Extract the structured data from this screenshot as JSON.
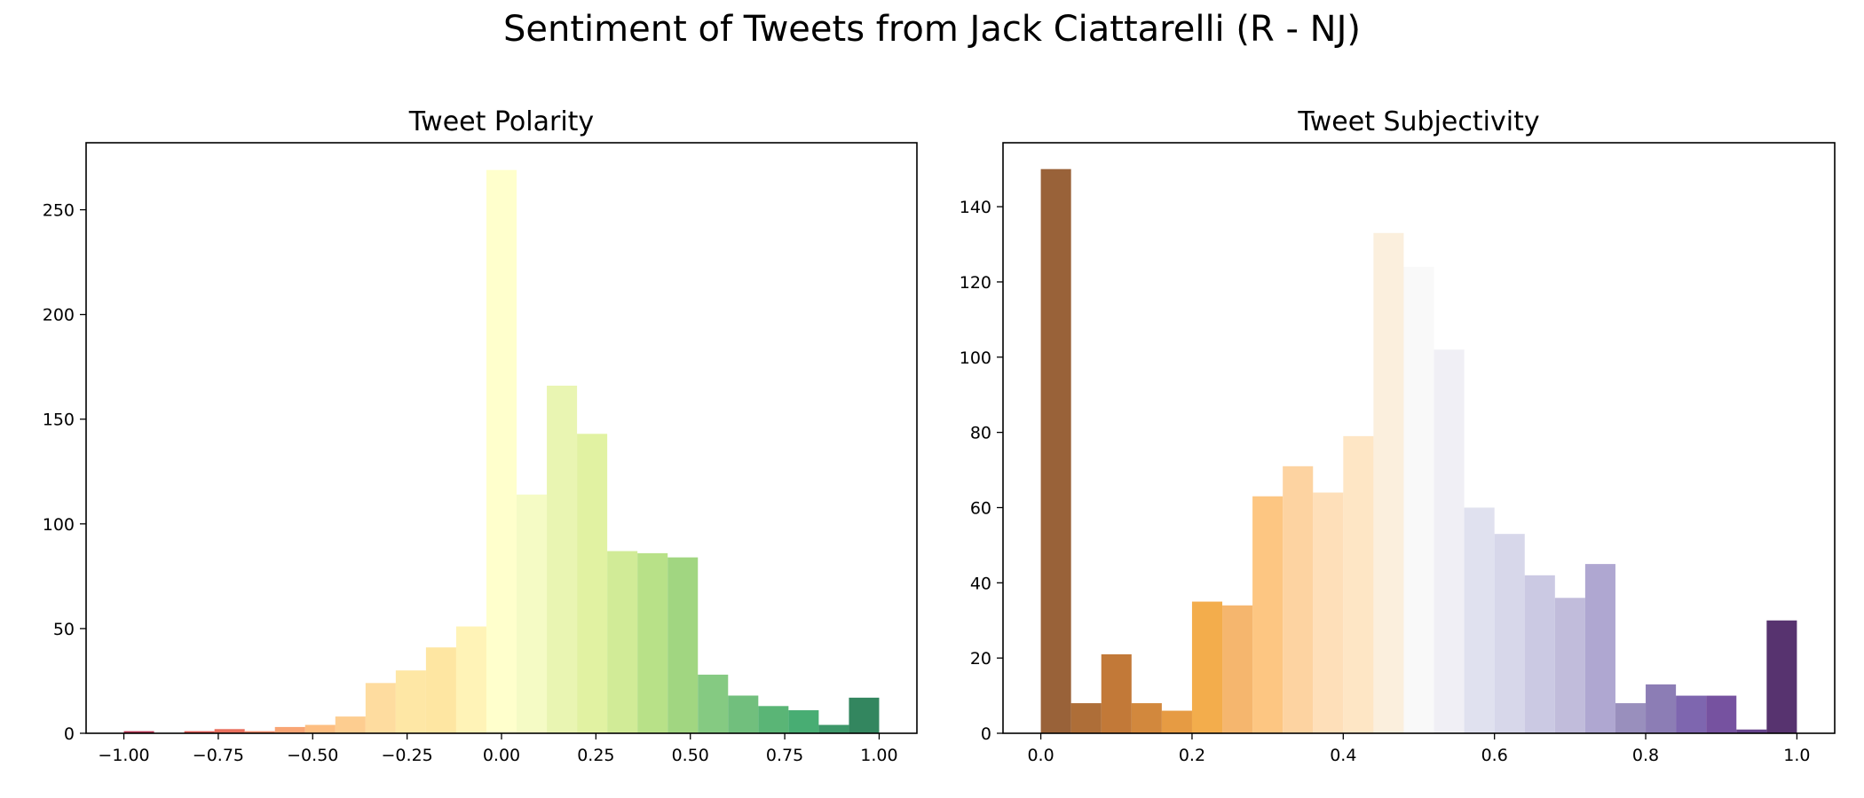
{
  "suptitle": "Sentiment of Tweets from Jack Ciattarelli (R - NJ)",
  "chart_data": [
    {
      "type": "bar",
      "title": "Tweet Polarity",
      "xlabel": "",
      "ylabel": "",
      "xlim": [
        -1.1,
        1.1
      ],
      "ylim": [
        0,
        282
      ],
      "xticks": [
        -1.0,
        -0.75,
        -0.5,
        -0.25,
        0.0,
        0.25,
        0.5,
        0.75,
        1.0
      ],
      "xtick_labels": [
        "−1.00",
        "−0.75",
        "−0.50",
        "−0.25",
        "0.00",
        "0.25",
        "0.50",
        "0.75",
        "1.00"
      ],
      "yticks": [
        0,
        50,
        100,
        150,
        200,
        250
      ],
      "ytick_labels": [
        "0",
        "50",
        "100",
        "150",
        "200",
        "250"
      ],
      "bin_edges": [
        -1.0,
        -0.92,
        -0.84,
        -0.76,
        -0.68,
        -0.6,
        -0.52,
        -0.44,
        -0.36,
        -0.28,
        -0.2,
        -0.12,
        -0.04,
        0.04,
        0.12,
        0.2,
        0.28,
        0.36,
        0.44,
        0.52,
        0.6,
        0.68,
        0.76,
        0.84,
        0.92,
        1.0
      ],
      "values": [
        1,
        0,
        1,
        2,
        1,
        3,
        4,
        8,
        24,
        30,
        41,
        51,
        269,
        114,
        166,
        143,
        87,
        86,
        84,
        28,
        18,
        13,
        11,
        4,
        17
      ],
      "colors": [
        "#a50026",
        "#be1827",
        "#d73027",
        "#e34b34",
        "#f46d43",
        "#f88e53",
        "#fdae61",
        "#fdc174",
        "#fed387",
        "#fee18e",
        "#fee08b",
        "#fff0a5",
        "#ffffbf",
        "#f2fab7",
        "#e4f39f",
        "#d9ef8b",
        "#c5e67d",
        "#a6d96a",
        "#8acc62",
        "#66bd63",
        "#4eaf5c",
        "#31a354",
        "#1a9850",
        "#0d7d43",
        "#006837"
      ],
      "alpha": 0.8
    },
    {
      "type": "bar",
      "title": "Tweet Subjectivity",
      "xlabel": "",
      "ylabel": "",
      "xlim": [
        -0.05,
        1.05
      ],
      "ylim": [
        0,
        157
      ],
      "xticks": [
        0.0,
        0.2,
        0.4,
        0.6,
        0.8,
        1.0
      ],
      "xtick_labels": [
        "0.0",
        "0.2",
        "0.4",
        "0.6",
        "0.8",
        "1.0"
      ],
      "yticks": [
        0,
        20,
        40,
        60,
        80,
        100,
        120,
        140
      ],
      "ytick_labels": [
        "0",
        "20",
        "40",
        "60",
        "80",
        "100",
        "120",
        "140"
      ],
      "bin_edges": [
        0.0,
        0.04,
        0.08,
        0.12,
        0.16,
        0.2,
        0.24,
        0.28,
        0.32,
        0.36,
        0.4,
        0.44,
        0.48,
        0.52,
        0.56,
        0.6,
        0.64,
        0.68,
        0.72,
        0.76,
        0.8,
        0.84,
        0.88,
        0.92,
        0.96,
        1.0
      ],
      "values": [
        150,
        8,
        21,
        8,
        6,
        35,
        34,
        63,
        71,
        64,
        79,
        133,
        124,
        102,
        60,
        53,
        42,
        36,
        45,
        8,
        13,
        10,
        10,
        1,
        30
      ],
      "colors": [
        "#7f3b08",
        "#9a4a06",
        "#b35806",
        "#c76a0c",
        "#e08214",
        "#f0981f",
        "#f3a44a",
        "#fdb863",
        "#fdc889",
        "#fed7a8",
        "#fee0b6",
        "#faebd4",
        "#f7f7f7",
        "#ecebf2",
        "#d8daeb",
        "#cdcde5",
        "#bebbdc",
        "#b2abd2",
        "#9b91c5",
        "#8073ac",
        "#6f5ca2",
        "#5e409b",
        "#542788",
        "#40146f",
        "#2d004b"
      ],
      "alpha": 0.8
    }
  ]
}
